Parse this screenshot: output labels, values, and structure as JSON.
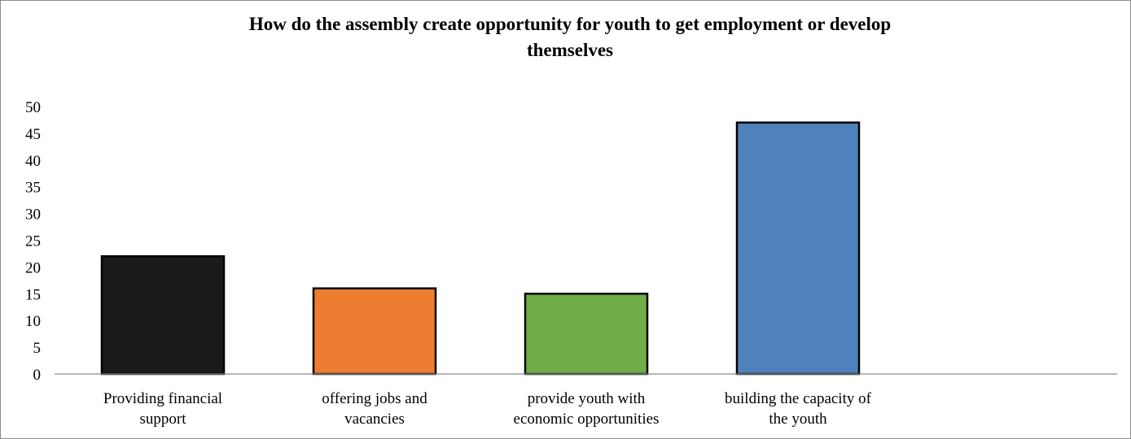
{
  "chart_data": {
    "type": "bar",
    "title_lines": [
      "How do the assembly create opportunity for youth to get employment or develop",
      "themselves"
    ],
    "categories": [
      [
        "Providing financial",
        "support"
      ],
      [
        "offering jobs and",
        "vacancies"
      ],
      [
        "provide youth with",
        "economic opportunities"
      ],
      [
        "building the capacity of",
        "the youth"
      ]
    ],
    "values": [
      22,
      16,
      15,
      47
    ],
    "colors": [
      "#1a1a1a",
      "#ed7d31",
      "#70ad47",
      "#4f81bd"
    ],
    "ylim": [
      0,
      50
    ],
    "yticks": [
      0,
      5,
      10,
      15,
      20,
      25,
      30,
      35,
      40,
      45,
      50
    ],
    "xlabel": "",
    "ylabel": "",
    "grid": false,
    "legend": "none"
  }
}
